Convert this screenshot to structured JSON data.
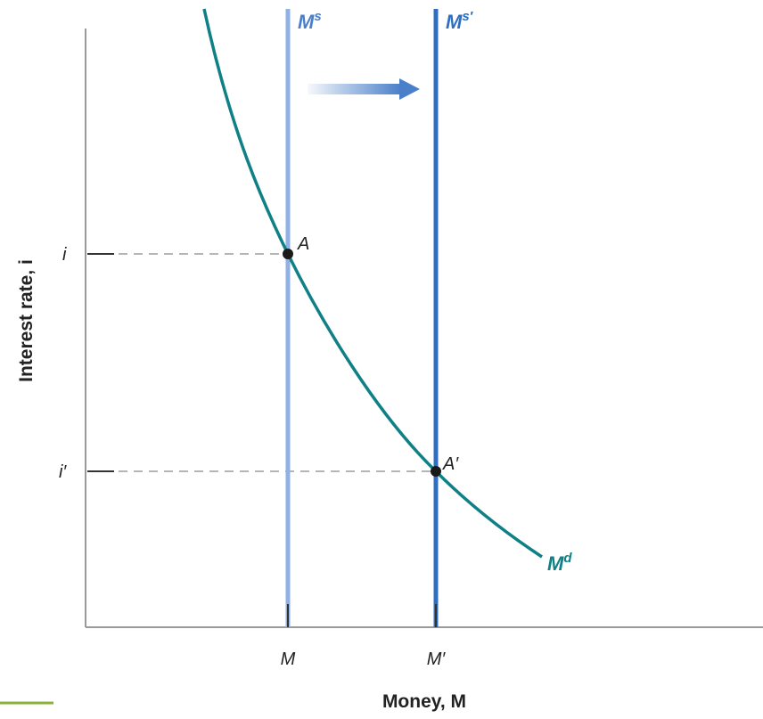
{
  "figure": {
    "y_axis_label": "Interest rate, i",
    "x_axis_label": "Money, M",
    "y_ticks": [
      "i",
      "i′"
    ],
    "x_ticks": [
      "M",
      "M′"
    ],
    "curves": {
      "supply_original": {
        "label_main": "M",
        "label_sup": "s",
        "color": "#8fb1e4"
      },
      "supply_shifted": {
        "label_main": "M",
        "label_sup": "s′",
        "color": "#2e6fc0"
      },
      "demand": {
        "label_main": "M",
        "label_sup": "d",
        "color": "#0f8085"
      }
    },
    "points": [
      {
        "label": "A"
      },
      {
        "label": "A′"
      }
    ],
    "shift_arrow": {
      "direction": "right",
      "color": "#4a7fc9"
    },
    "colors": {
      "axis": "#9a9a9a",
      "guide": "#b5b5b5",
      "text": "#222222",
      "point": "#1a1a1a",
      "accent_line": "#8bb33a"
    }
  }
}
